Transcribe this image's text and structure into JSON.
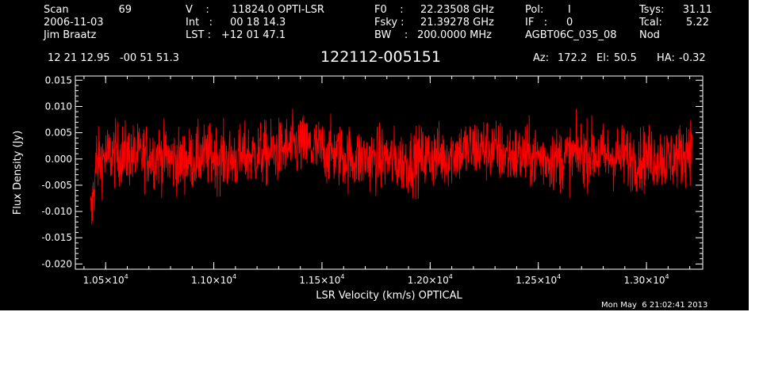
{
  "header": {
    "scan_label": "Scan",
    "scan_value": "69",
    "date": "2006-11-03",
    "observer": "Jim Braatz",
    "v_label": "V    :",
    "v_value": "11824.0 OPTI-LSR",
    "int_label": "Int   :",
    "int_value": "00 18 14.3",
    "lst_label": "LST :",
    "lst_value": "+12 01 47.1",
    "f0_label": "F0    :",
    "f0_value": "22.23508 GHz",
    "fsky_label": "Fsky :",
    "fsky_value": "21.39278 GHz",
    "bw_label": "BW    :",
    "bw_value": "200.0000 MHz",
    "pol_label": "Pol:",
    "pol_value": "I",
    "if_label": "IF   :",
    "if_value": "0",
    "project": "AGBT06C_035_08",
    "tsys_label": "Tsys:",
    "tsys_value": "31.11",
    "tcal_label": "Tcal:",
    "tcal_value": "5.22",
    "mode": "Nod",
    "coords": "12 21 12.95   -00 51 51.3",
    "source": "122112-005151",
    "az_label": "Az:",
    "az_value": "172.2",
    "el_label": "El:",
    "el_value": "50.5",
    "ha_label": "HA:",
    "ha_value": "-0.32"
  },
  "timestamp": "Mon May  6 21:02:41 2013",
  "colors": {
    "background": "#000000",
    "foreground": "#ffffff",
    "trace": "#ff0000"
  },
  "chart_data": {
    "type": "line",
    "xlabel": "LSR Velocity (km/s) OPTICAL",
    "ylabel": "Flux Density (Jy)",
    "xlim": [
      10360,
      13260
    ],
    "ylim": [
      -0.021,
      0.0158
    ],
    "yticks": [
      {
        "value": 0.015,
        "label": "0.015"
      },
      {
        "value": 0.01,
        "label": "0.010"
      },
      {
        "value": 0.005,
        "label": "0.005"
      },
      {
        "value": 0.0,
        "label": "0.000"
      },
      {
        "value": -0.005,
        "label": "-0.005"
      },
      {
        "value": -0.01,
        "label": "-0.010"
      },
      {
        "value": -0.015,
        "label": "-0.015"
      },
      {
        "value": -0.02,
        "label": "-0.020"
      }
    ],
    "xticks": [
      {
        "value": 10500,
        "mantissa": "1.05",
        "exponent": "4"
      },
      {
        "value": 11000,
        "mantissa": "1.10",
        "exponent": "4"
      },
      {
        "value": 11500,
        "mantissa": "1.15",
        "exponent": "4"
      },
      {
        "value": 12000,
        "mantissa": "1.20",
        "exponent": "4"
      },
      {
        "value": 12500,
        "mantissa": "1.25",
        "exponent": "4"
      },
      {
        "value": 13000,
        "mantissa": "1.30",
        "exponent": "4"
      }
    ],
    "grid": false,
    "series": [
      {
        "color": "#ff0000",
        "x": [
          10430,
          10440,
          10450,
          10460,
          10480,
          10500,
          10550,
          10600,
          10650,
          10700,
          10750,
          10800,
          10850,
          10900,
          10950,
          11000,
          11050,
          11100,
          11150,
          11200,
          11250,
          11300,
          11350,
          11400,
          11450,
          11500,
          11550,
          11600,
          11650,
          11700,
          11750,
          11800,
          11850,
          11900,
          11950,
          12000,
          12050,
          12100,
          12150,
          12200,
          12250,
          12300,
          12350,
          12400,
          12450,
          12500,
          12550,
          12600,
          12650,
          12700,
          12750,
          12800,
          12850,
          12900,
          12950,
          13000,
          13050,
          13100,
          13150,
          13190,
          13210
        ],
        "y": [
          -0.012,
          -0.008,
          -0.003,
          -0.001,
          0.0,
          0.0005,
          0.001,
          0.0008,
          0.0005,
          0.001,
          0.0005,
          0.0,
          -0.0005,
          0.0,
          0.0005,
          0.0005,
          0.0,
          0.0,
          0.0005,
          0.001,
          0.001,
          0.0015,
          0.002,
          0.0025,
          0.002,
          0.0015,
          0.001,
          0.0005,
          0.0,
          0.0,
          0.0,
          0.0,
          -0.0005,
          -0.0005,
          0.0,
          0.0005,
          0.0005,
          0.001,
          0.0015,
          0.002,
          0.002,
          0.0015,
          0.001,
          0.0005,
          0.0005,
          0.0005,
          0.0,
          0.0,
          0.0005,
          0.001,
          0.001,
          0.0005,
          0.0005,
          0.0005,
          0.0,
          0.0,
          0.0005,
          0.0,
          0.0005,
          0.002,
          0.0025
        ]
      }
    ]
  }
}
